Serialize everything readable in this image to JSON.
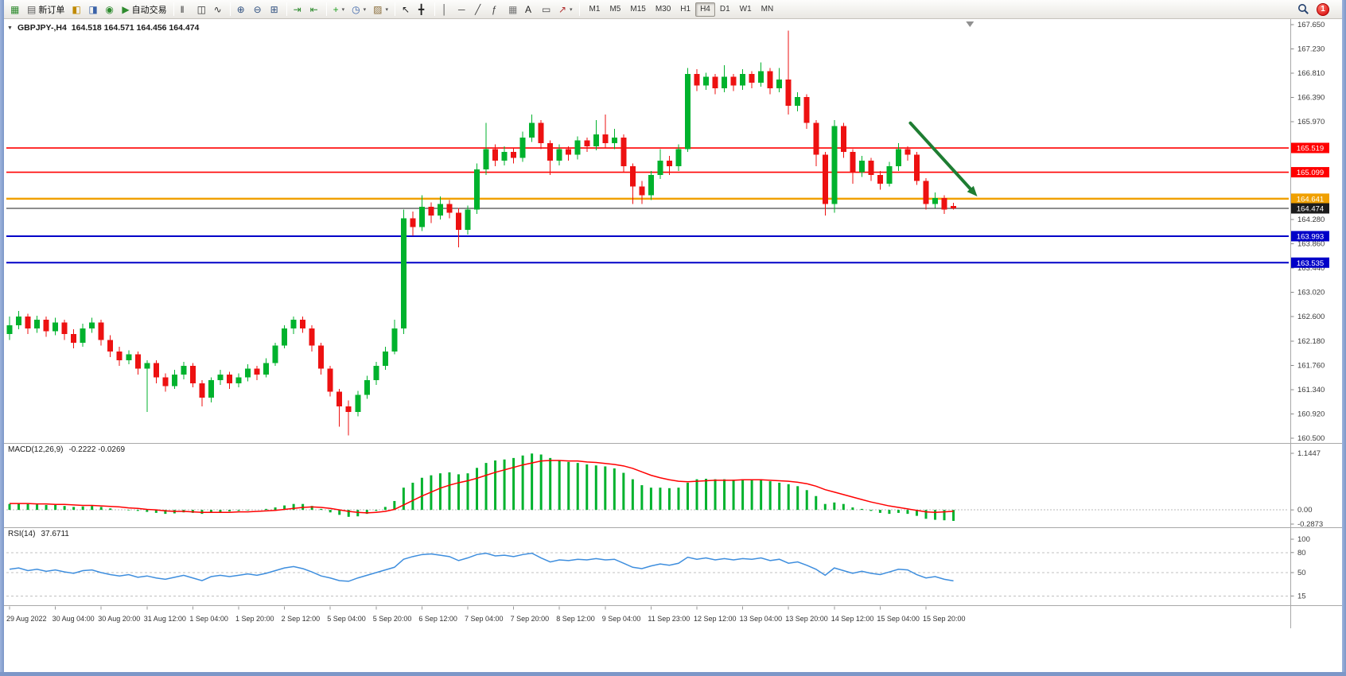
{
  "colors": {
    "candle_up": "#00B22D",
    "candle_down": "#ED1111",
    "macd_hist": "#00B22D",
    "macd_signal": "#FF0000",
    "rsi_line": "#3E8EDE",
    "axis_text": "#3a3a3a",
    "divider": "#a8a8a8"
  },
  "toolbar": {
    "caret_glyph": "▾",
    "groups": [
      {
        "name": "file-group",
        "buttons": [
          {
            "name": "charts-window-icon",
            "glyph": "▦",
            "color": "#2e8b2e"
          },
          {
            "name": "new-order-button",
            "glyph": "▤",
            "color": "#5a5a5a",
            "label": "新订单"
          },
          {
            "name": "chart-profiles-icon",
            "glyph": "◧",
            "color": "#c08a00"
          },
          {
            "name": "data-window-icon",
            "glyph": "◨",
            "color": "#3a62a8"
          },
          {
            "name": "navigator-icon",
            "glyph": "◉",
            "color": "#2e8b2e"
          },
          {
            "name": "autotrading-button",
            "glyph": "▶",
            "color": "#2e8b2e",
            "label": "自动交易"
          }
        ]
      },
      {
        "name": "chart-type-group",
        "buttons": [
          {
            "name": "bar-chart-icon",
            "glyph": "‖",
            "color": "#333333"
          },
          {
            "name": "candlestick-chart-icon",
            "glyph": "◫",
            "color": "#333333"
          },
          {
            "name": "line-chart-icon",
            "glyph": "∿",
            "color": "#333333"
          }
        ]
      },
      {
        "name": "zoom-group",
        "buttons": [
          {
            "name": "zoom-in-icon",
            "glyph": "⊕",
            "color": "#2f4f7f"
          },
          {
            "name": "zoom-out-icon",
            "glyph": "⊖",
            "color": "#2f4f7f"
          },
          {
            "name": "tile-windows-icon",
            "glyph": "⊞",
            "color": "#2f4f7f"
          }
        ]
      },
      {
        "name": "scroll-group",
        "buttons": [
          {
            "name": "auto-scroll-icon",
            "glyph": "⇥",
            "color": "#2e8b2e"
          },
          {
            "name": "chart-shift-icon",
            "glyph": "⇤",
            "color": "#2e8b2e"
          }
        ]
      },
      {
        "name": "insert-group",
        "buttons": [
          {
            "name": "indicators-button",
            "glyph": "+",
            "color": "#1e9e1e",
            "caret": true
          },
          {
            "name": "periods-button",
            "glyph": "◷",
            "color": "#3a62a8",
            "caret": true
          },
          {
            "name": "templates-button",
            "glyph": "▨",
            "color": "#8a6d3b",
            "caret": true
          }
        ]
      },
      {
        "name": "cursor-group",
        "buttons": [
          {
            "name": "cursor-icon",
            "glyph": "↖",
            "color": "#222222"
          },
          {
            "name": "crosshair-icon",
            "glyph": "╋",
            "color": "#222222"
          }
        ]
      },
      {
        "name": "objects-group",
        "buttons": [
          {
            "name": "vertical-line-icon",
            "glyph": "│",
            "color": "#444444"
          },
          {
            "name": "horizontal-line-icon",
            "glyph": "─",
            "color": "#444444"
          },
          {
            "name": "trendline-icon",
            "glyph": "╱",
            "color": "#444444"
          },
          {
            "name": "fibonacci-icon",
            "glyph": "ƒ",
            "color": "#444444"
          },
          {
            "name": "grid-icon",
            "glyph": "▦",
            "color": "#777777"
          },
          {
            "name": "text-icon",
            "glyph": "A",
            "color": "#222222"
          },
          {
            "name": "text-label-icon",
            "glyph": "▭",
            "color": "#444444"
          },
          {
            "name": "arrows-button",
            "glyph": "↗",
            "color": "#b03030",
            "caret": true
          }
        ]
      }
    ],
    "timeframes": {
      "labels": [
        "M1",
        "M5",
        "M15",
        "M30",
        "H1",
        "H4",
        "D1",
        "W1",
        "MN"
      ],
      "active": "H4"
    },
    "right": {
      "notification_count": "1"
    }
  },
  "chart_header": {
    "collapse_icon": "▼",
    "symbol_period": "GBPJPY-,H4",
    "ohlc": "164.518 164.571 164.456 164.474"
  },
  "chart_data": {
    "type": "candlestick",
    "symbol": "GBPJPY-",
    "timeframe": "H4",
    "current_bar": {
      "open": "164.518",
      "high": "164.571",
      "low": "164.456",
      "close": "164.474"
    },
    "price_axis": {
      "ticks": [
        "167.650",
        "167.230",
        "166.810",
        "166.390",
        "165.970",
        "164.280",
        "163.860",
        "163.440",
        "163.020",
        "162.600",
        "162.180",
        "161.760",
        "161.340",
        "160.920",
        "160.500"
      ]
    },
    "hlines": [
      {
        "price": 165.519,
        "label": "165.519",
        "color": "#FF0000",
        "width": 1.6
      },
      {
        "price": 165.099,
        "label": "165.099",
        "color": "#FF0000",
        "width": 1.6
      },
      {
        "price": 164.641,
        "label": "164.641",
        "color": "#F0A000",
        "width": 2.5
      },
      {
        "price": 163.993,
        "label": "163.993",
        "color": "#0000C8",
        "width": 2
      },
      {
        "price": 163.535,
        "label": "163.535",
        "color": "#0000C8",
        "width": 2
      }
    ],
    "current_price_line": {
      "price": 164.474,
      "label": "164.474",
      "color": "#1C1C1C",
      "width": 1
    },
    "arrow": {
      "from_bar": 98.3,
      "from_price": 165.95,
      "to_bar": 105.6,
      "to_price": 164.68,
      "color": "#1E7D32"
    },
    "shift_marker_bar": 104.8,
    "candles": [
      [
        162.3,
        162.6,
        162.2,
        162.45
      ],
      [
        162.45,
        162.7,
        162.38,
        162.6
      ],
      [
        162.6,
        162.65,
        162.3,
        162.4
      ],
      [
        162.4,
        162.62,
        162.32,
        162.55
      ],
      [
        162.55,
        162.6,
        162.25,
        162.35
      ],
      [
        162.35,
        162.58,
        162.28,
        162.5
      ],
      [
        162.5,
        162.55,
        162.2,
        162.3
      ],
      [
        162.3,
        162.38,
        162.05,
        162.15
      ],
      [
        162.15,
        162.48,
        162.08,
        162.4
      ],
      [
        162.4,
        162.58,
        162.32,
        162.5
      ],
      [
        162.5,
        162.55,
        162.1,
        162.2
      ],
      [
        162.2,
        162.28,
        161.9,
        162.0
      ],
      [
        162.0,
        162.08,
        161.75,
        161.85
      ],
      [
        161.85,
        162.02,
        161.78,
        161.95
      ],
      [
        161.95,
        162.0,
        161.6,
        161.7
      ],
      [
        161.7,
        161.85,
        160.95,
        161.8
      ],
      [
        161.8,
        161.85,
        161.45,
        161.55
      ],
      [
        161.55,
        161.62,
        161.3,
        161.4
      ],
      [
        161.4,
        161.68,
        161.35,
        161.6
      ],
      [
        161.6,
        161.82,
        161.52,
        161.75
      ],
      [
        161.75,
        161.8,
        161.38,
        161.45
      ],
      [
        161.45,
        161.5,
        161.05,
        161.2
      ],
      [
        161.2,
        161.55,
        161.12,
        161.5
      ],
      [
        161.5,
        161.68,
        161.42,
        161.6
      ],
      [
        161.6,
        161.65,
        161.35,
        161.45
      ],
      [
        161.45,
        161.62,
        161.38,
        161.55
      ],
      [
        161.55,
        161.78,
        161.48,
        161.7
      ],
      [
        161.7,
        161.75,
        161.5,
        161.6
      ],
      [
        161.6,
        161.88,
        161.55,
        161.8
      ],
      [
        161.8,
        162.15,
        161.75,
        162.1
      ],
      [
        162.1,
        162.45,
        162.05,
        162.4
      ],
      [
        162.4,
        162.6,
        162.3,
        162.55
      ],
      [
        162.55,
        162.6,
        162.32,
        162.4
      ],
      [
        162.4,
        162.45,
        162.0,
        162.1
      ],
      [
        162.1,
        162.15,
        161.6,
        161.7
      ],
      [
        161.7,
        161.75,
        161.22,
        161.3
      ],
      [
        161.3,
        161.35,
        160.7,
        161.05
      ],
      [
        161.05,
        161.15,
        160.55,
        160.95
      ],
      [
        160.95,
        161.32,
        160.88,
        161.25
      ],
      [
        161.25,
        161.58,
        161.18,
        161.5
      ],
      [
        161.5,
        161.82,
        161.42,
        161.75
      ],
      [
        161.75,
        162.08,
        161.68,
        162.0
      ],
      [
        162.0,
        162.55,
        161.95,
        162.4
      ],
      [
        162.4,
        164.45,
        162.3,
        164.3
      ],
      [
        164.3,
        164.42,
        164.0,
        164.15
      ],
      [
        164.15,
        164.7,
        164.08,
        164.5
      ],
      [
        164.5,
        164.58,
        164.22,
        164.35
      ],
      [
        164.35,
        164.68,
        164.28,
        164.55
      ],
      [
        164.55,
        164.62,
        164.3,
        164.4
      ],
      [
        164.4,
        164.48,
        163.8,
        164.1
      ],
      [
        164.1,
        164.52,
        164.02,
        164.45
      ],
      [
        164.45,
        165.25,
        164.38,
        165.15
      ],
      [
        165.15,
        165.95,
        165.05,
        165.5
      ],
      [
        165.5,
        165.58,
        165.2,
        165.3
      ],
      [
        165.3,
        165.55,
        165.22,
        165.45
      ],
      [
        165.45,
        165.52,
        165.25,
        165.35
      ],
      [
        165.35,
        165.8,
        165.28,
        165.7
      ],
      [
        165.7,
        166.1,
        165.62,
        165.95
      ],
      [
        165.95,
        166.0,
        165.5,
        165.6
      ],
      [
        165.6,
        165.65,
        165.05,
        165.3
      ],
      [
        165.3,
        165.58,
        165.22,
        165.5
      ],
      [
        165.5,
        165.55,
        165.3,
        165.4
      ],
      [
        165.4,
        165.72,
        165.32,
        165.65
      ],
      [
        165.65,
        165.7,
        165.45,
        165.55
      ],
      [
        165.55,
        166.0,
        165.48,
        165.75
      ],
      [
        165.75,
        166.1,
        165.52,
        165.6
      ],
      [
        165.6,
        165.85,
        165.5,
        165.7
      ],
      [
        165.7,
        165.75,
        165.1,
        165.2
      ],
      [
        165.2,
        165.25,
        164.55,
        164.85
      ],
      [
        164.85,
        164.95,
        164.55,
        164.7
      ],
      [
        164.7,
        165.12,
        164.62,
        165.05
      ],
      [
        165.05,
        165.5,
        164.98,
        165.3
      ],
      [
        165.3,
        165.38,
        165.05,
        165.2
      ],
      [
        165.2,
        165.58,
        165.12,
        165.5
      ],
      [
        165.5,
        166.9,
        165.45,
        166.8
      ],
      [
        166.8,
        166.88,
        166.5,
        166.6
      ],
      [
        166.6,
        166.82,
        166.52,
        166.75
      ],
      [
        166.75,
        166.8,
        166.45,
        166.55
      ],
      [
        166.55,
        166.95,
        166.48,
        166.75
      ],
      [
        166.75,
        166.8,
        166.5,
        166.6
      ],
      [
        166.6,
        166.88,
        166.52,
        166.8
      ],
      [
        166.8,
        166.85,
        166.55,
        166.65
      ],
      [
        166.65,
        167.0,
        166.58,
        166.85
      ],
      [
        166.85,
        166.9,
        166.45,
        166.55
      ],
      [
        166.55,
        166.9,
        166.48,
        166.7
      ],
      [
        166.7,
        167.55,
        166.1,
        166.25
      ],
      [
        166.25,
        166.48,
        166.15,
        166.4
      ],
      [
        166.4,
        166.45,
        165.85,
        165.95
      ],
      [
        165.95,
        166.0,
        165.2,
        165.4
      ],
      [
        165.4,
        165.45,
        164.35,
        164.55
      ],
      [
        164.55,
        166.0,
        164.4,
        165.9
      ],
      [
        165.9,
        165.95,
        165.35,
        165.45
      ],
      [
        165.45,
        165.5,
        164.9,
        165.1
      ],
      [
        165.1,
        165.38,
        165.02,
        165.3
      ],
      [
        165.3,
        165.35,
        164.95,
        165.05
      ],
      [
        165.05,
        165.12,
        164.8,
        164.9
      ],
      [
        164.9,
        165.28,
        164.85,
        165.2
      ],
      [
        165.2,
        165.6,
        165.12,
        165.5
      ],
      [
        165.5,
        165.55,
        165.3,
        165.4
      ],
      [
        165.4,
        165.45,
        164.88,
        164.95
      ],
      [
        164.95,
        165.0,
        164.45,
        164.55
      ],
      [
        164.55,
        164.75,
        164.48,
        164.65
      ],
      [
        164.65,
        164.7,
        164.38,
        164.45
      ],
      [
        164.518,
        164.571,
        164.456,
        164.474
      ]
    ],
    "x_labels": [
      "29 Aug 2022",
      "30 Aug 04:00",
      "30 Aug 20:00",
      "31 Aug 12:00",
      "1 Sep 04:00",
      "1 Sep 20:00",
      "2 Sep 12:00",
      "5 Sep 04:00",
      "5 Sep 20:00",
      "6 Sep 12:00",
      "7 Sep 04:00",
      "7 Sep 20:00",
      "8 Sep 12:00",
      "9 Sep 04:00",
      "11 Sep 23:00",
      "12 Sep 12:00",
      "13 Sep 04:00",
      "13 Sep 20:00",
      "14 Sep 12:00",
      "15 Sep 04:00",
      "15 Sep 20:00"
    ],
    "x_label_step": 5,
    "macd": {
      "label": "MACD(12,26,9)",
      "values": "-0.2222 -0.0269",
      "axis": [
        "1.1447",
        "0.00",
        "-0.2873"
      ],
      "max": 1.1447,
      "min": -0.2873,
      "hist": [
        0.12,
        0.13,
        0.12,
        0.11,
        0.1,
        0.1,
        0.08,
        0.06,
        0.07,
        0.08,
        0.06,
        0.03,
        0.0,
        -0.01,
        -0.02,
        -0.04,
        -0.06,
        -0.08,
        -0.07,
        -0.05,
        -0.06,
        -0.08,
        -0.06,
        -0.04,
        -0.03,
        -0.02,
        -0.01,
        0.0,
        0.02,
        0.05,
        0.09,
        0.12,
        0.12,
        0.08,
        0.02,
        -0.05,
        -0.1,
        -0.14,
        -0.13,
        -0.08,
        -0.02,
        0.06,
        0.18,
        0.45,
        0.55,
        0.65,
        0.7,
        0.74,
        0.76,
        0.72,
        0.74,
        0.85,
        0.95,
        1.0,
        1.02,
        1.05,
        1.1,
        1.14,
        1.12,
        1.05,
        1.0,
        0.97,
        0.95,
        0.92,
        0.9,
        0.88,
        0.84,
        0.75,
        0.62,
        0.5,
        0.45,
        0.45,
        0.44,
        0.45,
        0.55,
        0.62,
        0.63,
        0.62,
        0.62,
        0.61,
        0.62,
        0.61,
        0.62,
        0.58,
        0.55,
        0.52,
        0.48,
        0.4,
        0.28,
        0.12,
        0.15,
        0.12,
        0.05,
        0.02,
        -0.02,
        -0.06,
        -0.08,
        -0.06,
        -0.08,
        -0.12,
        -0.18,
        -0.2,
        -0.21,
        -0.2222
      ],
      "signal": [
        0.13,
        0.13,
        0.13,
        0.12,
        0.12,
        0.11,
        0.11,
        0.1,
        0.09,
        0.09,
        0.08,
        0.07,
        0.06,
        0.04,
        0.03,
        0.01,
        0.0,
        -0.02,
        -0.03,
        -0.03,
        -0.04,
        -0.05,
        -0.05,
        -0.05,
        -0.05,
        -0.04,
        -0.04,
        -0.03,
        -0.02,
        -0.01,
        0.01,
        0.03,
        0.05,
        0.06,
        0.05,
        0.03,
        0.0,
        -0.03,
        -0.05,
        -0.06,
        -0.05,
        -0.03,
        0.01,
        0.1,
        0.19,
        0.28,
        0.36,
        0.44,
        0.5,
        0.55,
        0.59,
        0.64,
        0.7,
        0.76,
        0.81,
        0.86,
        0.91,
        0.95,
        0.99,
        1.0,
        1.0,
        0.99,
        0.99,
        0.97,
        0.96,
        0.94,
        0.92,
        0.89,
        0.84,
        0.77,
        0.7,
        0.65,
        0.61,
        0.58,
        0.57,
        0.58,
        0.59,
        0.6,
        0.6,
        0.6,
        0.61,
        0.61,
        0.61,
        0.6,
        0.59,
        0.58,
        0.56,
        0.53,
        0.48,
        0.41,
        0.36,
        0.31,
        0.26,
        0.21,
        0.16,
        0.12,
        0.08,
        0.05,
        0.02,
        -0.01,
        -0.04,
        -0.05,
        -0.04,
        -0.0269
      ]
    },
    "rsi": {
      "label": "RSI(14)",
      "value": "37.6711",
      "axis_labels": [
        "100",
        "80",
        "50",
        "15"
      ],
      "levels": [
        80,
        50,
        15
      ],
      "values": [
        55,
        57,
        53,
        55,
        52,
        54,
        51,
        49,
        53,
        54,
        50,
        47,
        45,
        47,
        43,
        45,
        42,
        40,
        43,
        46,
        42,
        38,
        44,
        46,
        44,
        46,
        48,
        46,
        49,
        53,
        57,
        59,
        56,
        51,
        45,
        42,
        38,
        37,
        42,
        46,
        50,
        54,
        58,
        70,
        74,
        77,
        78,
        76,
        74,
        68,
        72,
        77,
        79,
        75,
        76,
        74,
        77,
        79,
        72,
        66,
        69,
        68,
        70,
        69,
        71,
        69,
        70,
        64,
        58,
        56,
        60,
        63,
        61,
        64,
        73,
        70,
        72,
        69,
        71,
        69,
        71,
        70,
        72,
        68,
        70,
        64,
        66,
        61,
        55,
        46,
        57,
        53,
        49,
        52,
        49,
        47,
        51,
        55,
        54,
        47,
        42,
        44,
        40,
        37.67
      ]
    }
  }
}
